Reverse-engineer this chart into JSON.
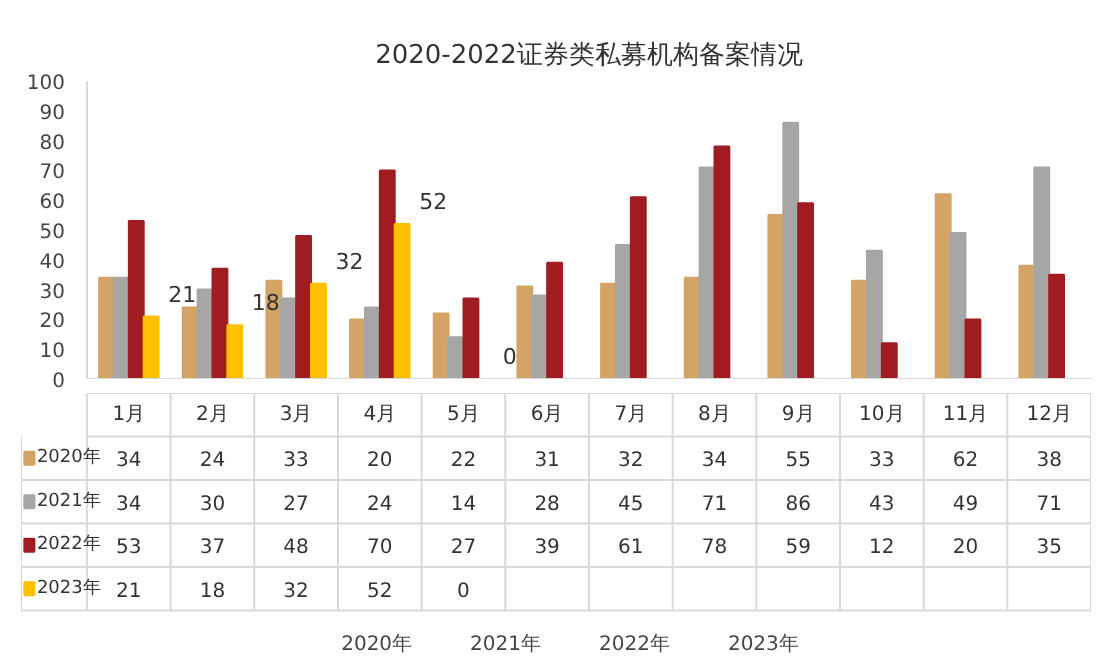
{
  "chart_data": {
    "type": "bar",
    "title": "2020-2022证券类私募机构备案情况",
    "categories": [
      "1月",
      "2月",
      "3月",
      "4月",
      "5月",
      "6月",
      "7月",
      "8月",
      "9月",
      "10月",
      "11月",
      "12月"
    ],
    "series": [
      {
        "name": "2020年",
        "color": "#d4a467",
        "values": [
          34,
          24,
          33,
          20,
          22,
          31,
          32,
          34,
          55,
          33,
          62,
          38
        ]
      },
      {
        "name": "2021年",
        "color": "#a6a6a6",
        "values": [
          34,
          30,
          27,
          24,
          14,
          28,
          45,
          71,
          86,
          43,
          49,
          71
        ]
      },
      {
        "name": "2022年",
        "color": "#a01c21",
        "values": [
          53,
          37,
          48,
          70,
          27,
          39,
          61,
          78,
          59,
          12,
          20,
          35
        ]
      },
      {
        "name": "2023年",
        "color": "#ffc000",
        "values": [
          21,
          18,
          32,
          52,
          0,
          null,
          null,
          null,
          null,
          null,
          null,
          null
        ]
      }
    ],
    "annotations": [
      {
        "text": "21",
        "x": "1月",
        "y": 21
      },
      {
        "text": "18",
        "x": "2月",
        "y": 18
      },
      {
        "text": "32",
        "x": "3月",
        "y": 32
      },
      {
        "text": "52",
        "x": "4月",
        "y": 52
      },
      {
        "text": "0",
        "x": "5月",
        "y": 0
      }
    ],
    "ylim": [
      0,
      100
    ],
    "yticks": [
      0,
      10,
      20,
      30,
      40,
      50,
      60,
      70,
      80,
      90,
      100
    ],
    "grid": false,
    "legend": "bottom",
    "data_labels": true
  }
}
